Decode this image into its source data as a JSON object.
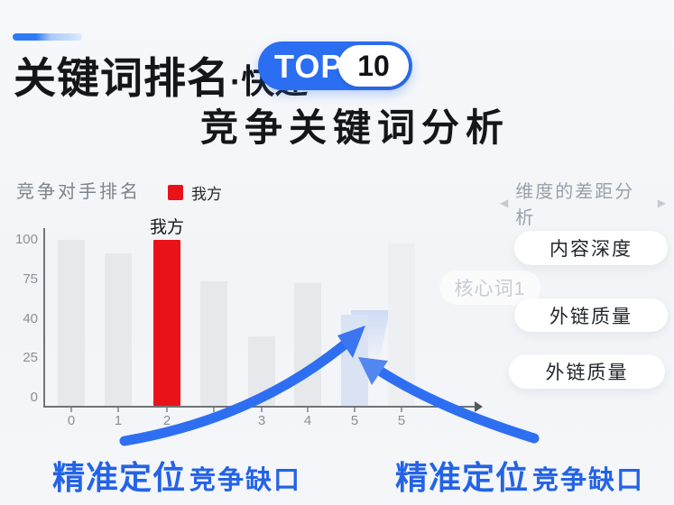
{
  "header": {
    "title_main": "关键词排名",
    "title_suffix": "·快速",
    "badge": {
      "text": "TOP",
      "number": "10"
    },
    "subtitle": "竞争关键词分析"
  },
  "chart_header": {
    "title": "竞争对手排名",
    "legend_label": "我方",
    "panel_title": "维度的差距分析",
    "panel_arrow_left": "◀",
    "panel_arrow_right": "▶"
  },
  "chart_data": {
    "type": "bar",
    "title": "竞争对手排名",
    "xlabel": "",
    "ylabel": "",
    "ylim": [
      0,
      100
    ],
    "grid": false,
    "legend_position": "top-left",
    "legend": [
      {
        "label": "我方",
        "color": "#ea1219"
      }
    ],
    "y_ticks": [
      "100",
      "75",
      "40",
      "25",
      "0"
    ],
    "x_ticks": [
      "0",
      "1",
      "2",
      "",
      "3",
      "4",
      "5",
      "5",
      ""
    ],
    "bars": [
      {
        "x": "0",
        "value": 100,
        "kind": "competitor"
      },
      {
        "x": "1",
        "value": 92,
        "kind": "competitor"
      },
      {
        "x": "2",
        "value": 100,
        "kind": "ours",
        "label": "我方"
      },
      {
        "x": "",
        "value": 75,
        "kind": "competitor"
      },
      {
        "x": "3",
        "value": 42,
        "kind": "competitor"
      },
      {
        "x": "4",
        "value": 74,
        "kind": "competitor"
      },
      {
        "x": "5",
        "value": 55,
        "kind": "gap"
      },
      {
        "x": "5",
        "value": 98,
        "kind": "competitor-faded"
      },
      {
        "x": "",
        "value": 0,
        "kind": "none"
      }
    ]
  },
  "watermark": {
    "label": "核心词1"
  },
  "panel": {
    "pills": [
      "内容深度",
      "外链质量",
      "外链质量"
    ]
  },
  "callouts": {
    "left": {
      "strong": "精准定位",
      "rest": "竞争缺口"
    },
    "right": {
      "strong": "精准定位",
      "rest": "竞争缺口"
    }
  },
  "colors": {
    "accent_blue": "#2b6ef2",
    "arrow_blue": "#2e6ff2",
    "callout_blue": "#2463e6",
    "our_red": "#ea1219",
    "competitor_bar": "#e6e8eb",
    "gap_bar": "#d9e3f4",
    "text_dark": "#15161a",
    "text_gray": "#7d838c"
  }
}
